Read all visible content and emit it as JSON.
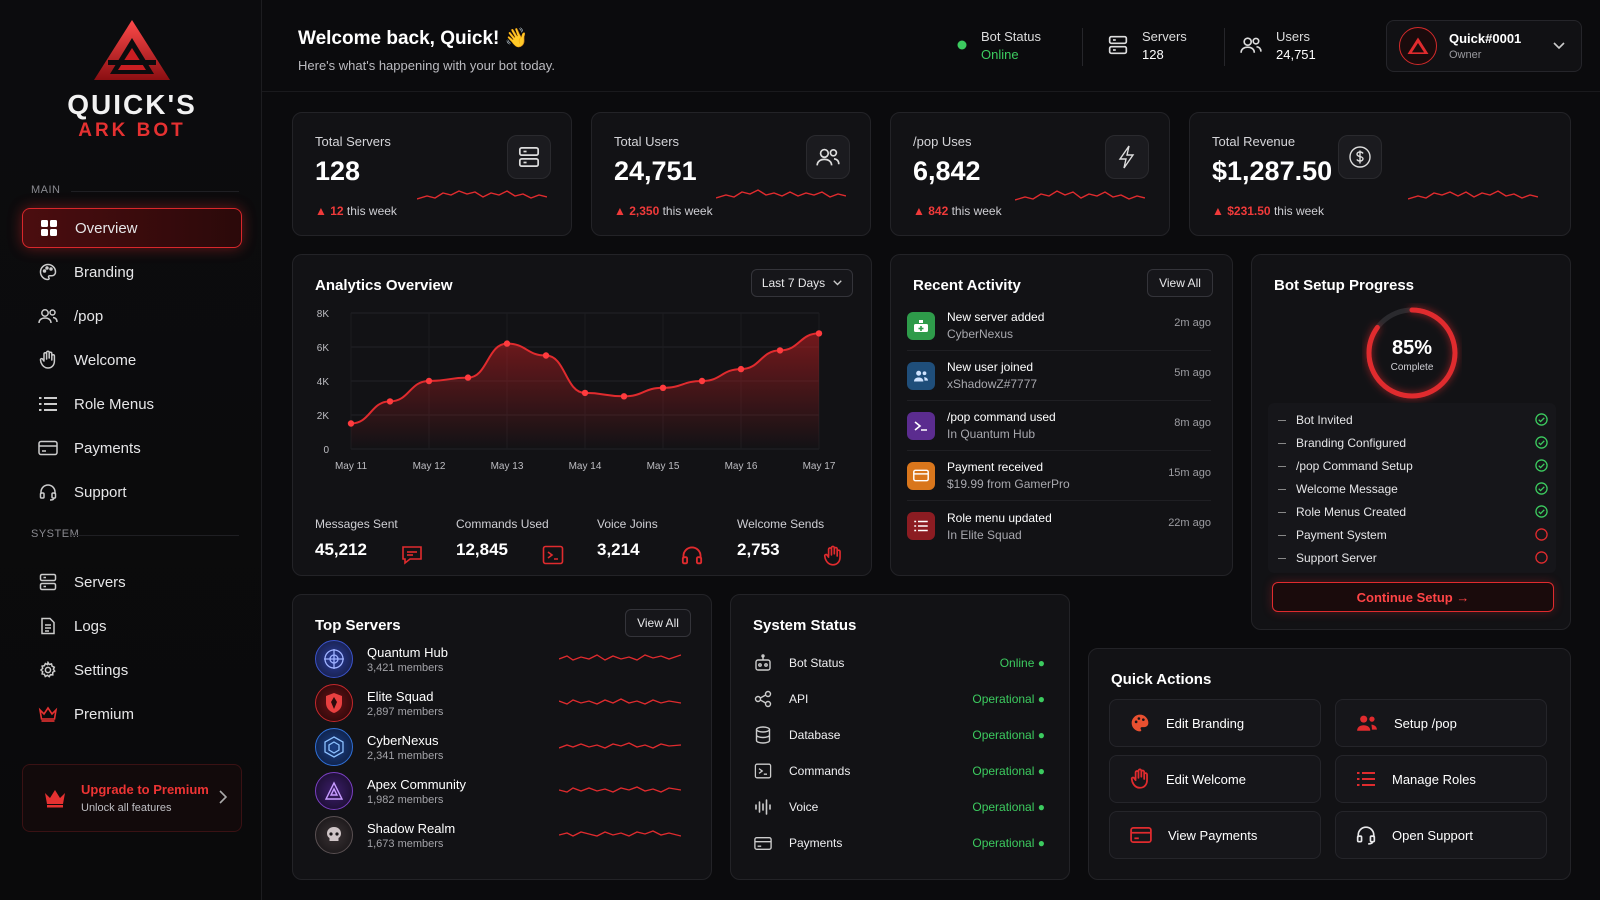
{
  "brand": {
    "line1": "QUICK'S",
    "line2": "ARK BOT"
  },
  "sidebar": {
    "main_label": "MAIN",
    "system_label": "SYSTEM",
    "main": [
      {
        "label": "Overview",
        "icon": "grid-icon",
        "active": true
      },
      {
        "label": "Branding",
        "icon": "palette-icon"
      },
      {
        "label": "/pop",
        "icon": "users-icon"
      },
      {
        "label": "Welcome",
        "icon": "wave-hand-icon"
      },
      {
        "label": "Role Menus",
        "icon": "list-icon"
      },
      {
        "label": "Payments",
        "icon": "card-icon"
      },
      {
        "label": "Support",
        "icon": "headset-icon"
      }
    ],
    "system": [
      {
        "label": "Servers",
        "icon": "server-icon"
      },
      {
        "label": "Logs",
        "icon": "document-icon"
      },
      {
        "label": "Settings",
        "icon": "gear-icon"
      },
      {
        "label": "Premium",
        "icon": "crown-icon"
      }
    ],
    "upgrade": {
      "title": "Upgrade to Premium",
      "subtitle": "Unlock all features"
    }
  },
  "header": {
    "title": "Welcome back, Quick! 👋",
    "subtitle": "Here's what's happening with your bot today.",
    "bot_status": {
      "label": "Bot Status",
      "value": "Online"
    },
    "servers": {
      "label": "Servers",
      "value": "128"
    },
    "users": {
      "label": "Users",
      "value": "24,751"
    },
    "account": {
      "name": "Quick#0001",
      "role": "Owner"
    }
  },
  "kpis": [
    {
      "label": "Total Servers",
      "value": "128",
      "delta": "12",
      "delta_suffix": " this week",
      "icon": "server-icon"
    },
    {
      "label": "Total Users",
      "value": "24,751",
      "delta": "2,350",
      "delta_suffix": " this week",
      "icon": "users-icon"
    },
    {
      "label": "/pop Uses",
      "value": "6,842",
      "delta": "842",
      "delta_suffix": " this week",
      "icon": "bolt-icon"
    },
    {
      "label": "Total Revenue",
      "value": "$1,287.50",
      "delta": "$231.50",
      "delta_suffix": " this week",
      "icon": "dollar-icon"
    }
  ],
  "analytics": {
    "title": "Analytics Overview",
    "range": "Last 7 Days",
    "stats": [
      {
        "label": "Messages Sent",
        "value": "45,212",
        "icon": "message-icon"
      },
      {
        "label": "Commands Used",
        "value": "12,845",
        "icon": "terminal-icon"
      },
      {
        "label": "Voice Joins",
        "value": "3,214",
        "icon": "headset-icon"
      },
      {
        "label": "Welcome Sends",
        "value": "2,753",
        "icon": "wave-hand-icon"
      }
    ]
  },
  "chart_data": {
    "type": "area",
    "categories": [
      "May 11",
      "May 12",
      "May 13",
      "May 14",
      "May 15",
      "May 16",
      "May 17"
    ],
    "yticks": [
      "0",
      "2K",
      "4K",
      "6K",
      "8K"
    ],
    "ylim": [
      0,
      8000
    ],
    "x": [
      0,
      0.5,
      1,
      1.5,
      2,
      2.5,
      3,
      3.5,
      4,
      4.5,
      5,
      5.5,
      6
    ],
    "values": [
      1500,
      2800,
      4000,
      4200,
      6200,
      5500,
      3300,
      3100,
      3600,
      4000,
      4700,
      5800,
      6800
    ]
  },
  "activity": {
    "title": "Recent Activity",
    "view_all": "View All",
    "items": [
      {
        "title": "New server added",
        "sub": "CyberNexus",
        "time": "2m ago",
        "color": "#2e9b4a",
        "icon": "server-add-icon"
      },
      {
        "title": "New user joined",
        "sub": "xShadowZ#7777",
        "time": "5m ago",
        "color": "#1f4e7a",
        "icon": "user-icon"
      },
      {
        "title": "/pop command used",
        "sub": "In Quantum Hub",
        "time": "8m ago",
        "color": "#5b2c8f",
        "icon": "command-icon"
      },
      {
        "title": "Payment received",
        "sub": "$19.99 from GamerPro",
        "time": "15m ago",
        "color": "#d9761c",
        "icon": "card-icon"
      },
      {
        "title": "Role menu updated",
        "sub": "In Elite Squad",
        "time": "22m ago",
        "color": "#8c1c22",
        "icon": "list-icon"
      }
    ]
  },
  "setup": {
    "title": "Bot Setup Progress",
    "percent": "85%",
    "progress": 0.85,
    "complete_label": "Complete",
    "steps": [
      {
        "label": "Bot Invited",
        "done": true
      },
      {
        "label": "Branding Configured",
        "done": true
      },
      {
        "label": "/pop Command Setup",
        "done": true
      },
      {
        "label": "Welcome Message",
        "done": true
      },
      {
        "label": "Role Menus Created",
        "done": true
      },
      {
        "label": "Payment System",
        "done": false
      },
      {
        "label": "Support Server",
        "done": false
      }
    ],
    "button": "Continue Setup →"
  },
  "top_servers": {
    "title": "Top Servers",
    "view_all": "View All",
    "items": [
      {
        "name": "Quantum Hub",
        "members": "3,421 members",
        "color": "#3a52c9",
        "icon": "quantum-emblem-icon"
      },
      {
        "name": "Elite Squad",
        "members": "2,897 members",
        "color": "#c3282c",
        "icon": "shield-emblem-icon"
      },
      {
        "name": "CyberNexus",
        "members": "2,341 members",
        "color": "#2f6fd6",
        "icon": "nexus-emblem-icon"
      },
      {
        "name": "Apex Community",
        "members": "1,982 members",
        "color": "#7a3fc2",
        "icon": "apex-emblem-icon"
      },
      {
        "name": "Shadow Realm",
        "members": "1,673 members",
        "color": "#7a6e70",
        "icon": "skull-emblem-icon"
      }
    ]
  },
  "system_status": {
    "title": "System Status",
    "items": [
      {
        "label": "Bot Status",
        "value": "Online",
        "icon": "robot-icon"
      },
      {
        "label": "API",
        "value": "Operational",
        "icon": "api-icon"
      },
      {
        "label": "Database",
        "value": "Operational",
        "icon": "database-icon"
      },
      {
        "label": "Commands",
        "value": "Operational",
        "icon": "terminal-icon"
      },
      {
        "label": "Voice",
        "value": "Operational",
        "icon": "waveform-icon"
      },
      {
        "label": "Payments",
        "value": "Operational",
        "icon": "card-icon"
      }
    ]
  },
  "quick_actions": {
    "title": "Quick Actions",
    "items": [
      {
        "label": "Edit Branding",
        "icon": "palette-icon"
      },
      {
        "label": "Setup /pop",
        "icon": "users-icon"
      },
      {
        "label": "Edit Welcome",
        "icon": "wave-hand-icon"
      },
      {
        "label": "Manage Roles",
        "icon": "list-icon"
      },
      {
        "label": "View Payments",
        "icon": "card-icon"
      },
      {
        "label": "Open Support",
        "icon": "headset-icon"
      }
    ]
  },
  "colors": {
    "accent": "#e02b2e",
    "success": "#3ccb5f"
  }
}
